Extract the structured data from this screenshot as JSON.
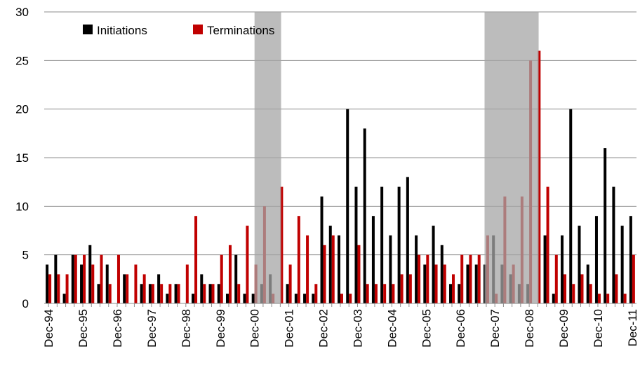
{
  "chart_data": {
    "type": "bar",
    "categories": [
      "Dec-94",
      null,
      null,
      null,
      "Dec-95",
      null,
      null,
      null,
      "Dec-96",
      null,
      null,
      null,
      "Dec-97",
      null,
      null,
      null,
      "Dec-98",
      null,
      null,
      null,
      "Dec-99",
      null,
      null,
      null,
      "Dec-00",
      null,
      null,
      null,
      "Dec-01",
      null,
      null,
      null,
      "Dec-02",
      null,
      null,
      null,
      "Dec-03",
      null,
      null,
      null,
      "Dec-04",
      null,
      null,
      null,
      "Dec-05",
      null,
      null,
      null,
      "Dec-06",
      null,
      null,
      null,
      "Dec-07",
      null,
      null,
      null,
      "Dec-08",
      null,
      null,
      null,
      "Dec-09",
      null,
      null,
      null,
      "Dec-10",
      null,
      null,
      null,
      "Dec-11"
    ],
    "series": [
      {
        "name": "Initiations",
        "color": "#000000",
        "values": [
          4,
          5,
          1,
          5,
          4,
          6,
          2,
          4,
          0,
          3,
          0,
          2,
          2,
          3,
          1,
          2,
          0,
          1,
          3,
          2,
          2,
          1,
          5,
          1,
          1,
          2,
          3,
          0,
          2,
          1,
          1,
          1,
          11,
          8,
          7,
          20,
          12,
          18,
          9,
          12,
          7,
          12,
          13,
          7,
          4,
          8,
          6,
          2,
          2,
          4,
          4,
          4,
          7,
          4,
          3,
          2,
          2,
          0,
          7,
          1,
          7,
          20,
          8,
          4,
          9,
          16,
          12,
          8,
          9
        ]
      },
      {
        "name": "Terminations",
        "color": "#c00000",
        "values": [
          3,
          3,
          3,
          5,
          5,
          4,
          5,
          2,
          5,
          3,
          4,
          3,
          2,
          2,
          2,
          2,
          4,
          9,
          2,
          2,
          5,
          6,
          2,
          8,
          4,
          10,
          1,
          12,
          4,
          9,
          7,
          2,
          6,
          7,
          1,
          1,
          6,
          2,
          2,
          2,
          2,
          3,
          3,
          5,
          5,
          4,
          4,
          3,
          5,
          5,
          5,
          7,
          1,
          11,
          4,
          11,
          25,
          26,
          12,
          5,
          3,
          2,
          3,
          2,
          1,
          1,
          3,
          1,
          5
        ]
      }
    ],
    "shaded": [
      [
        24.5,
        27.6
      ],
      [
        51.3,
        57.6
      ]
    ],
    "ylim": [
      0,
      30
    ],
    "yticks": [
      0,
      5,
      10,
      15,
      20,
      25,
      30
    ],
    "grid": true,
    "legend": "top-left"
  }
}
